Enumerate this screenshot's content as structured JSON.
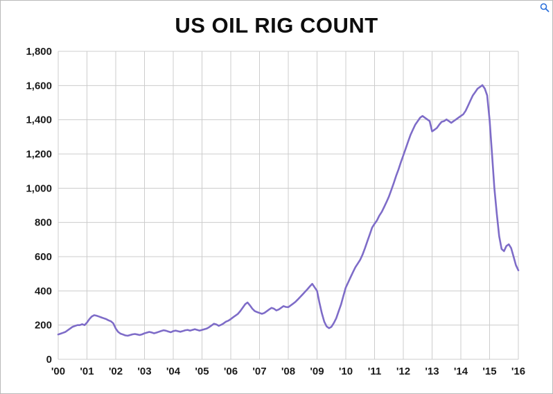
{
  "page": {
    "zoom_icon": "magnifier"
  },
  "chart_data": {
    "type": "line",
    "title": "US OIL RIG COUNT",
    "xlabel": "",
    "ylabel": "",
    "legend": "none",
    "grid": true,
    "line_color": "#7e6cc8",
    "grid_color": "#cccccc",
    "ylim": [
      0,
      1800
    ],
    "xlim_years": [
      2000,
      2016
    ],
    "y_ticks": [
      0,
      200,
      400,
      600,
      800,
      1000,
      1200,
      1400,
      1600,
      1800
    ],
    "y_tick_labels": [
      "0",
      "200",
      "400",
      "600",
      "800",
      "1,000",
      "1,200",
      "1,400",
      "1,600",
      "1,800"
    ],
    "x_tick_labels": [
      "'00",
      "'01",
      "'02",
      "'03",
      "'04",
      "'05",
      "'06",
      "'07",
      "'08",
      "'09",
      "'10",
      "'11",
      "'12",
      "'13",
      "'14",
      "'15",
      "'16"
    ],
    "series": [
      {
        "name": "US oil rig count",
        "x_start_year": 2000,
        "x_step_months": 1,
        "values": [
          145,
          150,
          155,
          160,
          170,
          180,
          190,
          195,
          200,
          200,
          205,
          200,
          215,
          235,
          250,
          258,
          255,
          250,
          245,
          240,
          235,
          228,
          222,
          210,
          180,
          160,
          150,
          145,
          140,
          138,
          142,
          146,
          148,
          145,
          142,
          146,
          152,
          156,
          160,
          157,
          152,
          156,
          161,
          166,
          170,
          167,
          162,
          158,
          165,
          168,
          164,
          161,
          165,
          170,
          172,
          168,
          172,
          176,
          172,
          168,
          172,
          176,
          180,
          188,
          198,
          208,
          204,
          196,
          202,
          210,
          220,
          226,
          235,
          246,
          256,
          266,
          282,
          302,
          322,
          332,
          315,
          296,
          282,
          276,
          271,
          266,
          271,
          281,
          291,
          301,
          296,
          286,
          291,
          301,
          311,
          306,
          305,
          315,
          325,
          336,
          350,
          365,
          380,
          395,
          410,
          426,
          441,
          421,
          400,
          330,
          270,
          220,
          192,
          182,
          190,
          212,
          240,
          280,
          320,
          370,
          420,
          450,
          480,
          510,
          538,
          560,
          582,
          612,
          650,
          690,
          730,
          770,
          792,
          812,
          840,
          862,
          890,
          920,
          952,
          990,
          1030,
          1072,
          1110,
          1152,
          1192,
          1232,
          1272,
          1312,
          1342,
          1372,
          1392,
          1412,
          1422,
          1412,
          1402,
          1392,
          1332,
          1342,
          1352,
          1372,
          1388,
          1392,
          1402,
          1392,
          1382,
          1392,
          1402,
          1412,
          1422,
          1432,
          1452,
          1482,
          1512,
          1542,
          1562,
          1582,
          1592,
          1602,
          1582,
          1542,
          1400,
          1200,
          1000,
          850,
          720,
          645,
          632,
          662,
          672,
          650,
          600,
          550,
          520
        ]
      }
    ]
  }
}
